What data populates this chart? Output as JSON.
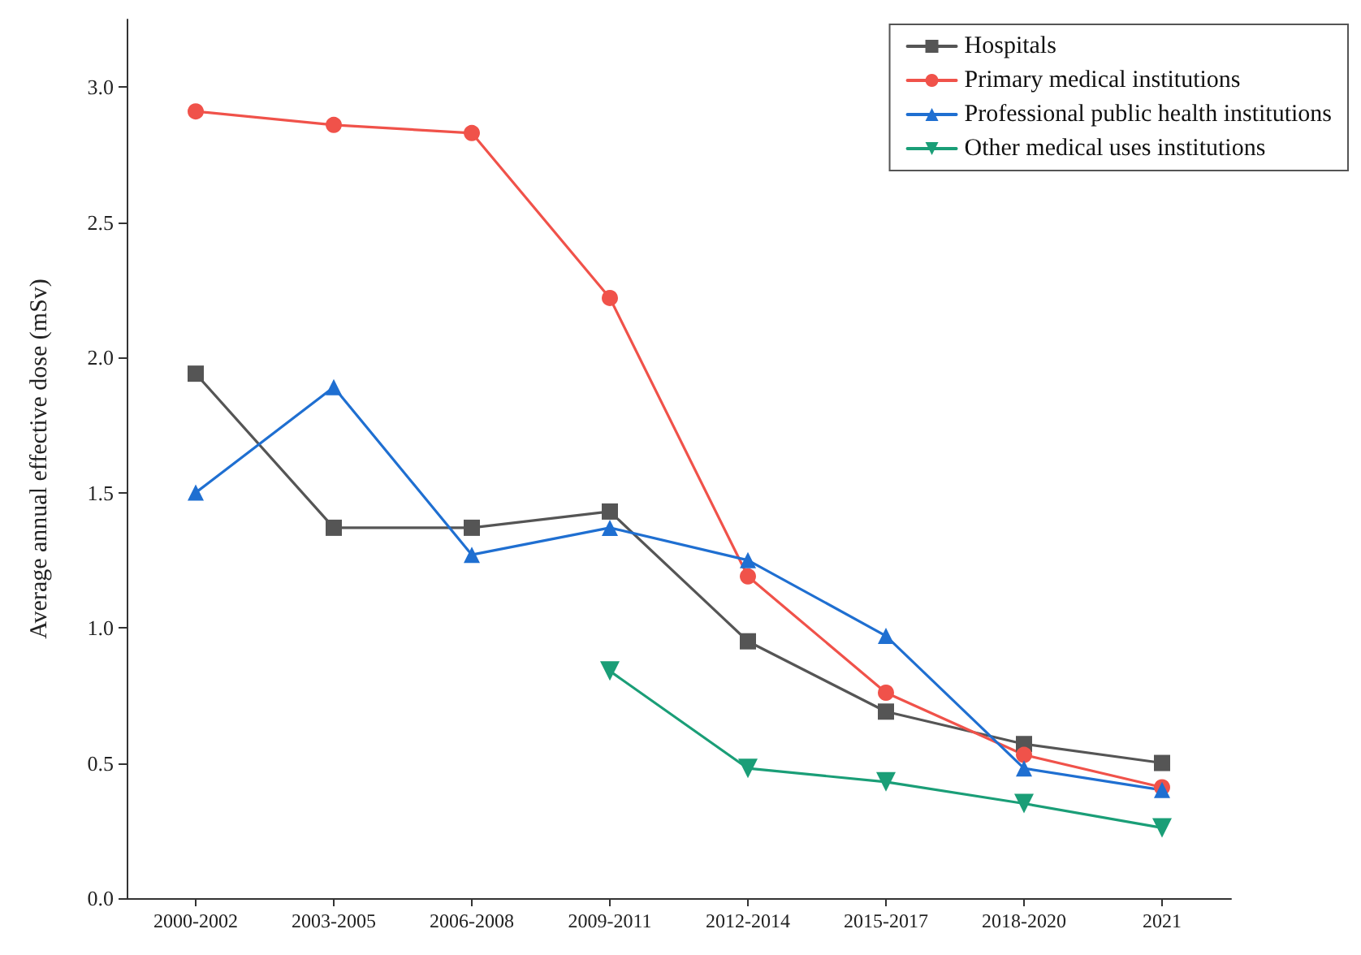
{
  "chart_data": {
    "type": "line",
    "ylabel": "Average annual effective dose (mSv)",
    "categories": [
      "2000-2002",
      "2003-2005",
      "2006-2008",
      "2009-2011",
      "2012-2014",
      "2015-2017",
      "2018-2020",
      "2021"
    ],
    "series": [
      {
        "name": "Hospitals",
        "color": "#555555",
        "marker": "square",
        "values": [
          1.94,
          1.37,
          1.37,
          1.43,
          0.95,
          0.69,
          0.57,
          0.5
        ]
      },
      {
        "name": "Primary medical institutions",
        "color": "#f0524a",
        "marker": "circle",
        "values": [
          2.91,
          2.86,
          2.83,
          2.22,
          1.19,
          0.76,
          0.53,
          0.41
        ]
      },
      {
        "name": "Professional public health institutions",
        "color": "#1f6fd1",
        "marker": "triangle",
        "values": [
          1.5,
          1.89,
          1.27,
          1.37,
          1.25,
          0.97,
          0.48,
          0.4
        ]
      },
      {
        "name": "Other medical uses institutions",
        "color": "#1a9e77",
        "marker": "triangle-down",
        "values": [
          null,
          null,
          null,
          0.84,
          0.48,
          0.43,
          0.35,
          0.26
        ]
      }
    ],
    "ylim": [
      0,
      3.25
    ],
    "yticks": [
      {
        "value": 0,
        "label": "0.0"
      },
      {
        "value": 0.5,
        "label": "0.5"
      },
      {
        "value": 1,
        "label": "1.0"
      },
      {
        "value": 1.5,
        "label": "1.5"
      },
      {
        "value": 2,
        "label": "2.0"
      },
      {
        "value": 2.5,
        "label": "2.5"
      },
      {
        "value": 3,
        "label": "3.0"
      }
    ],
    "grid": false,
    "legend": "top right",
    "line_style": "solid"
  }
}
